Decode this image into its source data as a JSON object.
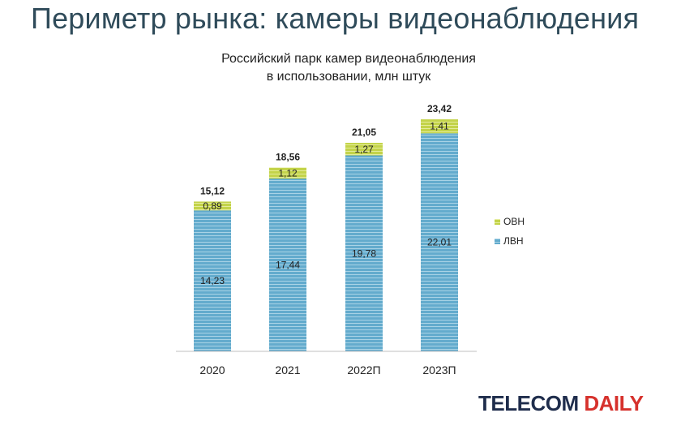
{
  "page_title": "Периметр рынка: камеры видеонаблюдения",
  "brand": {
    "part1": "TELECOM",
    "part2": "DAILY"
  },
  "chart_data": {
    "type": "bar",
    "stacked": true,
    "title_line1": "Российский парк камер видеонаблюдения",
    "title_line2": "в использовании, млн штук",
    "categories": [
      "2020",
      "2021",
      "2022П",
      "2023П"
    ],
    "series": [
      {
        "name": "ЛВН",
        "values": [
          14.23,
          17.44,
          19.78,
          22.01
        ],
        "labels": [
          "14,23",
          "17,44",
          "19,78",
          "22,01"
        ],
        "color": "#5ea8cc"
      },
      {
        "name": "ОВН",
        "values": [
          0.89,
          1.12,
          1.27,
          1.41
        ],
        "labels": [
          "0,89",
          "1,12",
          "1,27",
          "1,41"
        ],
        "color": "#c6d64a"
      }
    ],
    "totals": [
      "15,12",
      "18,56",
      "21,05",
      "23,42"
    ],
    "ylim": [
      0,
      24
    ],
    "legend_position": "right",
    "grid": false
  }
}
